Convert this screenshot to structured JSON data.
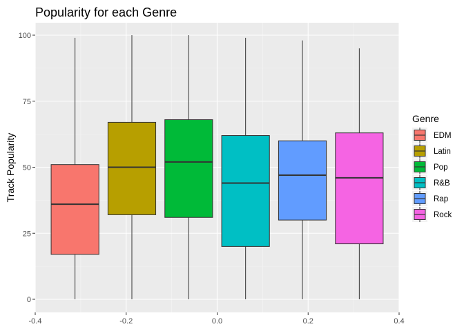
{
  "chart_data": {
    "type": "box",
    "title": "Popularity for each Genre",
    "xlabel": "",
    "ylabel": "Track Popularity",
    "xlim": [
      -0.4,
      0.4
    ],
    "ylim": [
      0,
      100
    ],
    "x_ticks": [
      "-0.4",
      "-0.2",
      "0.0",
      "0.2",
      "0.4"
    ],
    "x_tick_values": [
      -0.4,
      -0.2,
      0.0,
      0.2,
      0.4
    ],
    "y_ticks": [
      "0",
      "25",
      "50",
      "75",
      "100"
    ],
    "y_tick_values": [
      0,
      25,
      50,
      75,
      100
    ],
    "grid": true,
    "legend": {
      "title": "Genre",
      "position": "right"
    },
    "series": [
      {
        "name": "EDM",
        "color": "#F8766D",
        "x_center": -0.3125,
        "half_width": 0.0525,
        "min": 0,
        "q1": 17,
        "median": 36,
        "q3": 51,
        "max": 99
      },
      {
        "name": "Latin",
        "color": "#B79F00",
        "x_center": -0.1875,
        "half_width": 0.0525,
        "min": 0,
        "q1": 32,
        "median": 50,
        "q3": 67,
        "max": 100
      },
      {
        "name": "Pop",
        "color": "#00BA38",
        "x_center": -0.0625,
        "half_width": 0.0525,
        "min": 0,
        "q1": 31,
        "median": 52,
        "q3": 68,
        "max": 100
      },
      {
        "name": "R&B",
        "color": "#00BFC4",
        "x_center": 0.0625,
        "half_width": 0.0525,
        "min": 0,
        "q1": 20,
        "median": 44,
        "q3": 62,
        "max": 99
      },
      {
        "name": "Rap",
        "color": "#619CFF",
        "x_center": 0.1875,
        "half_width": 0.0525,
        "min": 0,
        "q1": 30,
        "median": 47,
        "q3": 60,
        "max": 98
      },
      {
        "name": "Rock",
        "color": "#F564E3",
        "x_center": 0.3125,
        "half_width": 0.0525,
        "min": 0,
        "q1": 21,
        "median": 46,
        "q3": 63,
        "max": 95
      }
    ]
  }
}
